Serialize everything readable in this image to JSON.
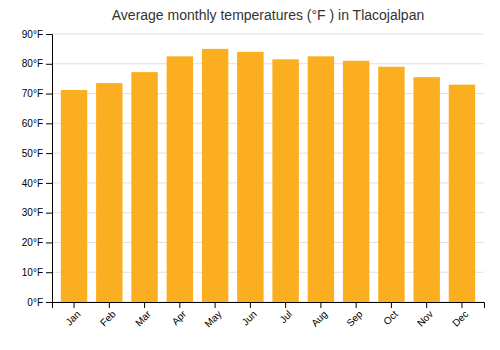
{
  "chart_data": {
    "type": "bar",
    "title": "Average monthly temperatures (°F ) in Tlacojalpan",
    "categories": [
      "Jan",
      "Feb",
      "Mar",
      "Apr",
      "May",
      "Jun",
      "Jul",
      "Aug",
      "Sep",
      "Oct",
      "Nov",
      "Dec"
    ],
    "values": [
      71.2,
      73.5,
      77.2,
      82.5,
      85.0,
      84.0,
      81.5,
      82.5,
      81.0,
      79.0,
      75.5,
      73.0
    ],
    "color": "#FBAF20",
    "ylim": [
      0,
      90
    ],
    "yticks": [
      {
        "value": 0,
        "label": "0°F"
      },
      {
        "value": 10,
        "label": "10°F"
      },
      {
        "value": 20,
        "label": "20°F"
      },
      {
        "value": 30,
        "label": "30°F"
      },
      {
        "value": 40,
        "label": "40°F"
      },
      {
        "value": 50,
        "label": "50°F"
      },
      {
        "value": 60,
        "label": "60°F"
      },
      {
        "value": 70,
        "label": "70°F"
      },
      {
        "value": 80,
        "label": "80°F"
      },
      {
        "value": 90,
        "label": "90°F"
      }
    ],
    "grid": true
  }
}
